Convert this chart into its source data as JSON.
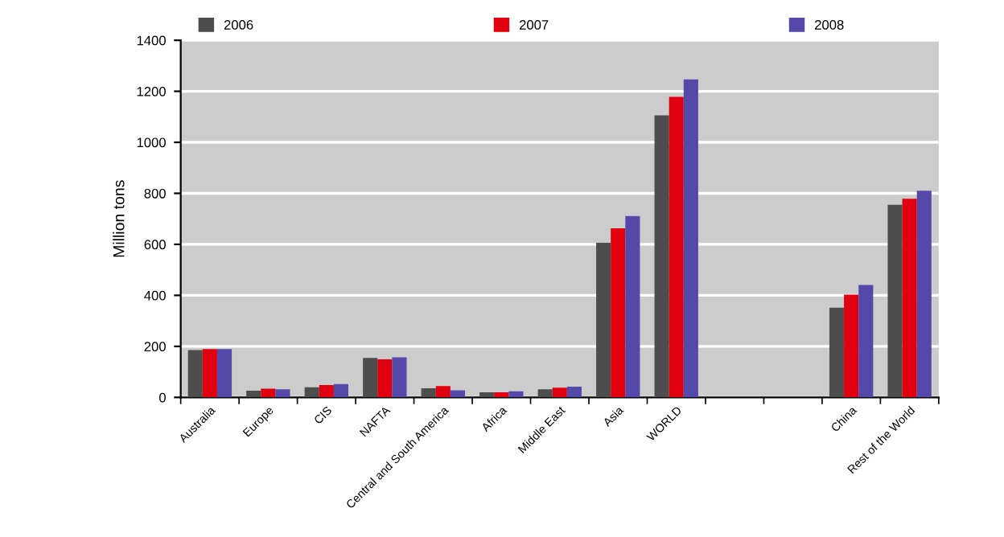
{
  "chart_data": {
    "type": "bar",
    "ylabel": "Million tons",
    "categories": [
      "Australia",
      "Europe",
      "CIS",
      "NAFTA",
      "Central and South America",
      "Africa",
      "Middle East",
      "Asia",
      "WORLD",
      null,
      null,
      "China",
      "Rest of the World"
    ],
    "series": [
      {
        "name": "2006",
        "color": "#4d4d4d",
        "values": [
          185,
          26,
          40,
          155,
          36,
          20,
          32,
          606,
          1106,
          null,
          null,
          352,
          755
        ]
      },
      {
        "name": "2007",
        "color": "#e0000f",
        "values": [
          189,
          34,
          48,
          149,
          44,
          20,
          38,
          663,
          1178,
          null,
          null,
          403,
          779
        ]
      },
      {
        "name": "2008",
        "color": "#5448a8",
        "values": [
          189,
          32,
          52,
          157,
          28,
          24,
          42,
          711,
          1247,
          null,
          null,
          441,
          810
        ]
      }
    ],
    "ylim": [
      0,
      1400
    ],
    "yticks": [
      0,
      200,
      400,
      600,
      800,
      1000,
      1200,
      1400
    ],
    "grid": "y",
    "legend": "top"
  }
}
